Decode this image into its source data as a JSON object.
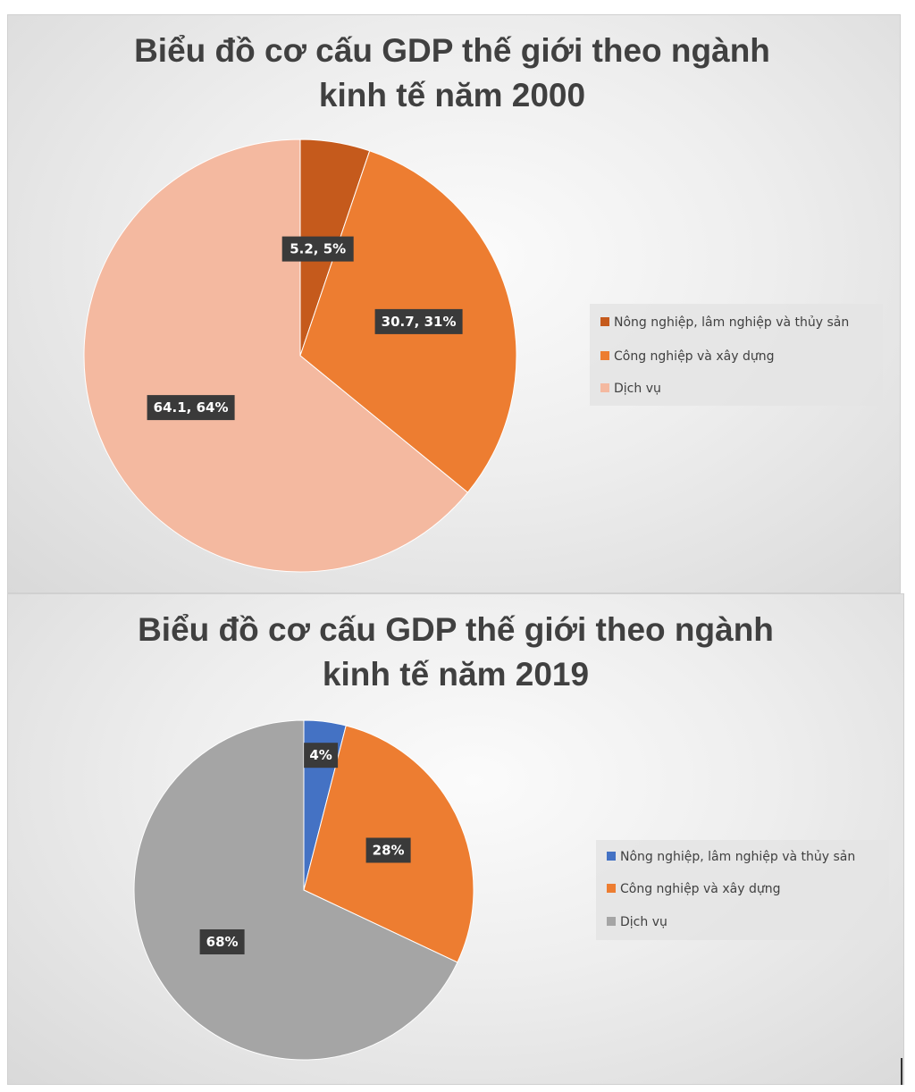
{
  "chart_data": [
    {
      "type": "pie",
      "title_lines": [
        "Biểu đồ cơ cấu GDP thế giới theo ngành",
        "kinh tế năm 2000"
      ],
      "categories": [
        "Nông nghiệp, lâm nghiệp và thủy sản",
        "Công nghiệp và xây dựng",
        "Dịch vụ"
      ],
      "values": [
        5.2,
        30.7,
        64.1
      ],
      "data_labels": [
        "5.2, 5%",
        "30.7, 31%",
        "64.1, 64%"
      ],
      "colors": [
        "#c55a1c",
        "#ed7d31",
        "#f4b9a0"
      ],
      "legend_position": "right"
    },
    {
      "type": "pie",
      "title_lines": [
        "Biểu đồ cơ cấu GDP thế giới theo ngành",
        "kinh tế năm 2019"
      ],
      "categories": [
        "Nông nghiệp, lâm nghiệp và thủy sản",
        "Công nghiệp và xây dựng",
        "Dịch vụ"
      ],
      "values": [
        4,
        28,
        68
      ],
      "data_labels": [
        "4%",
        "28%",
        "68%"
      ],
      "colors": [
        "#4472c4",
        "#ed7d31",
        "#a5a5a5"
      ],
      "legend_position": "right"
    }
  ]
}
